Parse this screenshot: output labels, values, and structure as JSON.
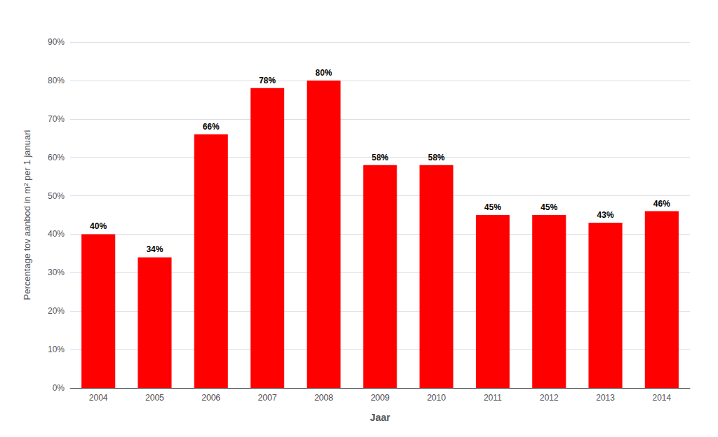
{
  "chart_data": {
    "type": "bar",
    "categories": [
      "2004",
      "2005",
      "2006",
      "2007",
      "2008",
      "2009",
      "2010",
      "2011",
      "2012",
      "2013",
      "2014"
    ],
    "values": [
      40,
      34,
      66,
      78,
      80,
      58,
      58,
      45,
      45,
      43,
      46
    ],
    "value_labels": [
      "40%",
      "34%",
      "66%",
      "78%",
      "80%",
      "58%",
      "58%",
      "45%",
      "45%",
      "43%",
      "46%"
    ],
    "data_labels": true,
    "color": "#ff0000",
    "xlabel": "Jaar",
    "ylabel": "Percentage tov aanbod in m² per 1 januari",
    "ylim": [
      0,
      90
    ],
    "yticks": [
      {
        "value": 0,
        "label": "0%"
      },
      {
        "value": 10,
        "label": "10%"
      },
      {
        "value": 20,
        "label": "20%"
      },
      {
        "value": 30,
        "label": "30%"
      },
      {
        "value": 40,
        "label": "40%"
      },
      {
        "value": 50,
        "label": "50%"
      },
      {
        "value": 60,
        "label": "60%"
      },
      {
        "value": 70,
        "label": "70%"
      },
      {
        "value": 80,
        "label": "80%"
      },
      {
        "value": 90,
        "label": "90%"
      }
    ],
    "grid": true
  }
}
